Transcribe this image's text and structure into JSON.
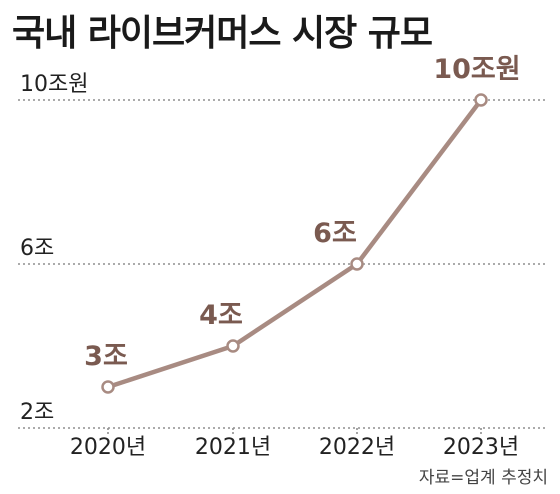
{
  "title": "국내 라이브커머스 시장 규모",
  "source": "자료=업계 추정치",
  "colors": {
    "line": "#a88b82",
    "label": "#7a5a50",
    "text": "#222222",
    "grid": "#8f8f8f"
  },
  "chart_data": {
    "type": "line",
    "title": "국내 라이브커머스 시장 규모",
    "categories": [
      "2020년",
      "2021년",
      "2022년",
      "2023년"
    ],
    "values": [
      3,
      4,
      6,
      10
    ],
    "data_labels": [
      "3조",
      "4조",
      "6조",
      "10조원"
    ],
    "y_ticks": [
      {
        "value": 2,
        "label": "2조"
      },
      {
        "value": 6,
        "label": "6조"
      },
      {
        "value": 10,
        "label": "10조원"
      }
    ],
    "ylim": [
      2,
      10
    ],
    "grid": true,
    "legend": "none"
  }
}
